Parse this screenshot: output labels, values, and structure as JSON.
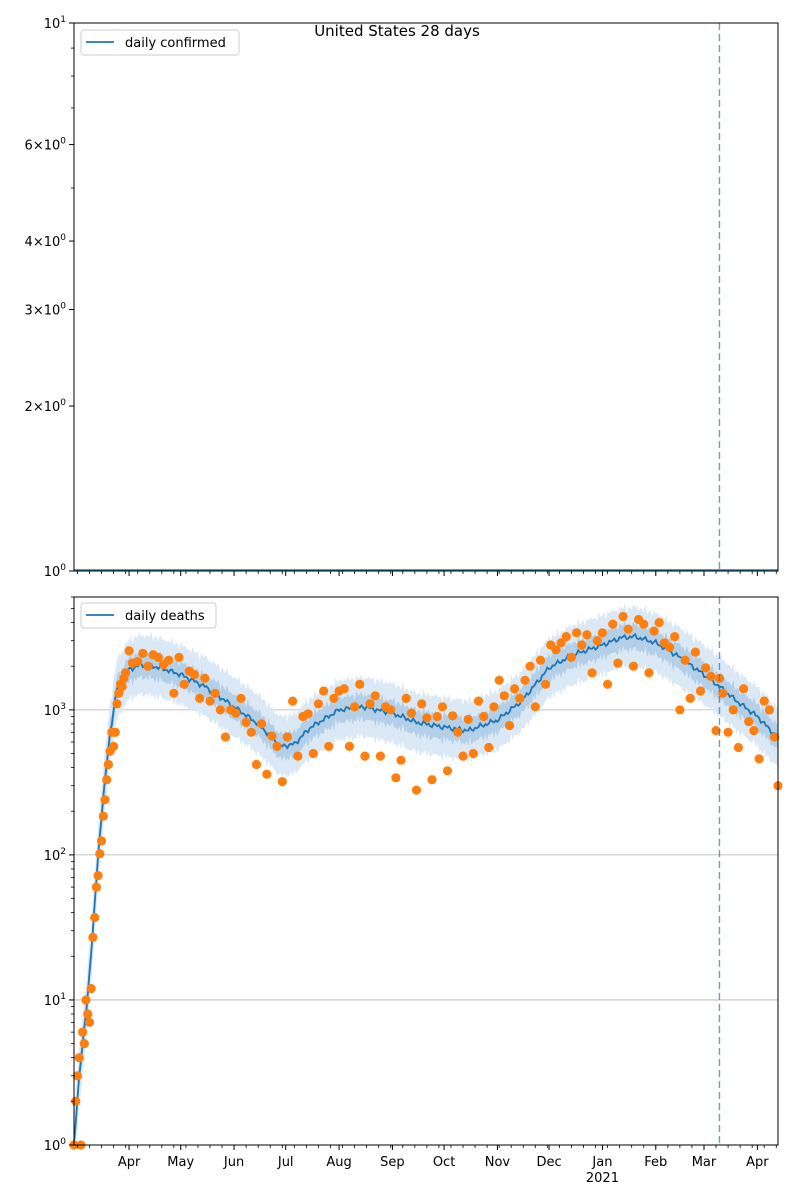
{
  "figure": {
    "title": "United States 28 days"
  },
  "colors": {
    "line": "#1f77b4",
    "band_outer": "#dbe9f6",
    "band_inner": "#b4cfe8",
    "scatter": "#ff7f0e",
    "grid": "#b0b0b0",
    "vline": "#1f77b4"
  },
  "chart_data": [
    {
      "type": "line",
      "legend": {
        "label": "daily confirmed",
        "placement": "top-left"
      },
      "yscale": "log",
      "ylim": [
        1,
        10
      ],
      "ytick_labels": [
        {
          "value": 1,
          "base": "10",
          "exp": "0",
          "coef": ""
        },
        {
          "value": 2,
          "base": "10",
          "exp": "0",
          "coef": "2"
        },
        {
          "value": 3,
          "base": "10",
          "exp": "0",
          "coef": "3"
        },
        {
          "value": 4,
          "base": "10",
          "exp": "0",
          "coef": "4"
        },
        {
          "value": 6,
          "base": "10",
          "exp": "0",
          "coef": "6"
        },
        {
          "value": 10,
          "base": "10",
          "exp": "1",
          "coef": ""
        }
      ],
      "minor_ticks": [
        5,
        7,
        8,
        9
      ],
      "grid": false,
      "series": [
        {
          "values_description_free": true,
          "x": [
            "2020-02-29",
            "2021-04-13"
          ],
          "y": [
            1,
            1
          ]
        }
      ],
      "vline_date": "2021-03-10"
    },
    {
      "type": "line+scatter",
      "legend": {
        "label": "daily deaths",
        "placement": "top-left"
      },
      "yscale": "log",
      "ylim": [
        1,
        6000
      ],
      "ytick_labels": [
        {
          "value": 1,
          "base": "10",
          "exp": "0"
        },
        {
          "value": 10,
          "base": "10",
          "exp": "1"
        },
        {
          "value": 100,
          "base": "10",
          "exp": "2"
        },
        {
          "value": 1000,
          "base": "10",
          "exp": "3"
        }
      ],
      "grid": true,
      "xlim": [
        "2020-02-29",
        "2021-04-13"
      ],
      "x_ticks": [
        {
          "date": "2020-04-01",
          "label": "Apr"
        },
        {
          "date": "2020-05-01",
          "label": "May"
        },
        {
          "date": "2020-06-01",
          "label": "Jun"
        },
        {
          "date": "2020-07-01",
          "label": "Jul"
        },
        {
          "date": "2020-08-01",
          "label": "Aug"
        },
        {
          "date": "2020-09-01",
          "label": "Sep"
        },
        {
          "date": "2020-10-01",
          "label": "Oct"
        },
        {
          "date": "2020-11-01",
          "label": "Nov"
        },
        {
          "date": "2020-12-01",
          "label": "Dec"
        },
        {
          "date": "2021-01-01",
          "label": "Jan",
          "sublabel": "2021"
        },
        {
          "date": "2021-02-01",
          "label": "Feb"
        },
        {
          "date": "2021-03-01",
          "label": "Mar"
        },
        {
          "date": "2021-04-01",
          "label": "Apr"
        }
      ],
      "vline_date": "2021-03-10",
      "trend_keypoints": [
        [
          "2020-02-29",
          1
        ],
        [
          "2020-03-03",
          3
        ],
        [
          "2020-03-07",
          8
        ],
        [
          "2020-03-11",
          30
        ],
        [
          "2020-03-14",
          100
        ],
        [
          "2020-03-17",
          250
        ],
        [
          "2020-03-21",
          700
        ],
        [
          "2020-03-25",
          1400
        ],
        [
          "2020-04-01",
          1900
        ],
        [
          "2020-04-08",
          2050
        ],
        [
          "2020-04-15",
          2000
        ],
        [
          "2020-04-22",
          1900
        ],
        [
          "2020-05-01",
          1750
        ],
        [
          "2020-05-15",
          1450
        ],
        [
          "2020-06-01",
          1050
        ],
        [
          "2020-06-15",
          800
        ],
        [
          "2020-06-28",
          560
        ],
        [
          "2020-07-06",
          580
        ],
        [
          "2020-07-15",
          750
        ],
        [
          "2020-08-01",
          1000
        ],
        [
          "2020-08-15",
          1050
        ],
        [
          "2020-09-01",
          950
        ],
        [
          "2020-09-15",
          820
        ],
        [
          "2020-10-01",
          760
        ],
        [
          "2020-10-15",
          720
        ],
        [
          "2020-11-01",
          850
        ],
        [
          "2020-11-15",
          1150
        ],
        [
          "2020-12-01",
          1950
        ],
        [
          "2020-12-15",
          2400
        ],
        [
          "2021-01-01",
          2800
        ],
        [
          "2021-01-12",
          3150
        ],
        [
          "2021-01-20",
          3200
        ],
        [
          "2021-02-01",
          2900
        ],
        [
          "2021-02-15",
          2300
        ],
        [
          "2021-03-01",
          1750
        ],
        [
          "2021-03-10",
          1450
        ],
        [
          "2021-03-20",
          1150
        ],
        [
          "2021-04-01",
          900
        ],
        [
          "2021-04-13",
          640
        ]
      ],
      "observed_daily_deaths": [
        [
          "2020-02-29",
          1
        ],
        [
          "2020-03-01",
          2
        ],
        [
          "2020-03-02",
          3
        ],
        [
          "2020-03-03",
          4
        ],
        [
          "2020-03-04",
          1
        ],
        [
          "2020-03-05",
          6
        ],
        [
          "2020-03-06",
          5
        ],
        [
          "2020-03-07",
          10
        ],
        [
          "2020-03-08",
          8
        ],
        [
          "2020-03-09",
          7
        ],
        [
          "2020-03-10",
          12
        ],
        [
          "2020-03-11",
          27
        ],
        [
          "2020-03-12",
          37
        ],
        [
          "2020-03-13",
          60
        ],
        [
          "2020-03-14",
          72
        ],
        [
          "2020-03-15",
          102
        ],
        [
          "2020-03-16",
          125
        ],
        [
          "2020-03-17",
          185
        ],
        [
          "2020-03-18",
          240
        ],
        [
          "2020-03-19",
          330
        ],
        [
          "2020-03-20",
          420
        ],
        [
          "2020-03-21",
          520
        ],
        [
          "2020-03-22",
          700
        ],
        [
          "2020-03-23",
          560
        ],
        [
          "2020-03-24",
          700
        ],
        [
          "2020-03-25",
          1100
        ],
        [
          "2020-03-26",
          1300
        ],
        [
          "2020-03-27",
          1500
        ],
        [
          "2020-03-28",
          1450
        ],
        [
          "2020-03-29",
          1650
        ],
        [
          "2020-03-30",
          1800
        ],
        [
          "2020-04-01",
          2550
        ],
        [
          "2020-04-03",
          2100
        ],
        [
          "2020-04-06",
          2150
        ],
        [
          "2020-04-09",
          2450
        ],
        [
          "2020-04-12",
          2000
        ],
        [
          "2020-04-15",
          2400
        ],
        [
          "2020-04-18",
          2300
        ],
        [
          "2020-04-21",
          2050
        ],
        [
          "2020-04-24",
          2200
        ],
        [
          "2020-04-27",
          1300
        ],
        [
          "2020-04-30",
          2300
        ],
        [
          "2020-05-03",
          1500
        ],
        [
          "2020-05-06",
          1850
        ],
        [
          "2020-05-09",
          1750
        ],
        [
          "2020-05-12",
          1200
        ],
        [
          "2020-05-15",
          1650
        ],
        [
          "2020-05-18",
          1150
        ],
        [
          "2020-05-21",
          1300
        ],
        [
          "2020-05-24",
          1000
        ],
        [
          "2020-05-27",
          650
        ],
        [
          "2020-05-30",
          1000
        ],
        [
          "2020-06-02",
          950
        ],
        [
          "2020-06-05",
          1200
        ],
        [
          "2020-06-08",
          820
        ],
        [
          "2020-06-11",
          700
        ],
        [
          "2020-06-14",
          420
        ],
        [
          "2020-06-17",
          800
        ],
        [
          "2020-06-20",
          360
        ],
        [
          "2020-06-23",
          660
        ],
        [
          "2020-06-26",
          560
        ],
        [
          "2020-06-29",
          320
        ],
        [
          "2020-07-02",
          650
        ],
        [
          "2020-07-05",
          1150
        ],
        [
          "2020-07-08",
          480
        ],
        [
          "2020-07-11",
          900
        ],
        [
          "2020-07-14",
          940
        ],
        [
          "2020-07-17",
          500
        ],
        [
          "2020-07-20",
          1100
        ],
        [
          "2020-07-23",
          1350
        ],
        [
          "2020-07-26",
          560
        ],
        [
          "2020-07-29",
          1200
        ],
        [
          "2020-08-01",
          1350
        ],
        [
          "2020-08-04",
          1400
        ],
        [
          "2020-08-07",
          560
        ],
        [
          "2020-08-10",
          1050
        ],
        [
          "2020-08-13",
          1500
        ],
        [
          "2020-08-16",
          480
        ],
        [
          "2020-08-19",
          1100
        ],
        [
          "2020-08-22",
          1250
        ],
        [
          "2020-08-25",
          480
        ],
        [
          "2020-08-28",
          1050
        ],
        [
          "2020-08-31",
          1000
        ],
        [
          "2020-09-03",
          340
        ],
        [
          "2020-09-06",
          450
        ],
        [
          "2020-09-09",
          1200
        ],
        [
          "2020-09-12",
          950
        ],
        [
          "2020-09-15",
          280
        ],
        [
          "2020-09-18",
          1100
        ],
        [
          "2020-09-21",
          880
        ],
        [
          "2020-09-24",
          330
        ],
        [
          "2020-09-27",
          900
        ],
        [
          "2020-09-30",
          1050
        ],
        [
          "2020-10-03",
          380
        ],
        [
          "2020-10-06",
          910
        ],
        [
          "2020-10-09",
          700
        ],
        [
          "2020-10-12",
          480
        ],
        [
          "2020-10-15",
          860
        ],
        [
          "2020-10-18",
          500
        ],
        [
          "2020-10-21",
          1150
        ],
        [
          "2020-10-24",
          900
        ],
        [
          "2020-10-27",
          550
        ],
        [
          "2020-10-30",
          1050
        ],
        [
          "2020-11-02",
          1600
        ],
        [
          "2020-11-05",
          1250
        ],
        [
          "2020-11-08",
          780
        ],
        [
          "2020-11-11",
          1400
        ],
        [
          "2020-11-14",
          1200
        ],
        [
          "2020-11-17",
          1600
        ],
        [
          "2020-11-20",
          2000
        ],
        [
          "2020-11-23",
          1050
        ],
        [
          "2020-11-26",
          2200
        ],
        [
          "2020-11-29",
          1500
        ],
        [
          "2020-12-02",
          2800
        ],
        [
          "2020-12-05",
          2600
        ],
        [
          "2020-12-08",
          2900
        ],
        [
          "2020-12-11",
          3200
        ],
        [
          "2020-12-14",
          2300
        ],
        [
          "2020-12-17",
          3400
        ],
        [
          "2020-12-20",
          2800
        ],
        [
          "2020-12-23",
          3300
        ],
        [
          "2020-12-26",
          1800
        ],
        [
          "2020-12-29",
          3000
        ],
        [
          "2021-01-01",
          3400
        ],
        [
          "2021-01-04",
          1500
        ],
        [
          "2021-01-07",
          3900
        ],
        [
          "2021-01-10",
          2100
        ],
        [
          "2021-01-13",
          4400
        ],
        [
          "2021-01-16",
          3600
        ],
        [
          "2021-01-19",
          2000
        ],
        [
          "2021-01-22",
          4200
        ],
        [
          "2021-01-25",
          3900
        ],
        [
          "2021-01-28",
          1800
        ],
        [
          "2021-01-31",
          3500
        ],
        [
          "2021-02-03",
          4000
        ],
        [
          "2021-02-06",
          2900
        ],
        [
          "2021-02-09",
          2700
        ],
        [
          "2021-02-12",
          3200
        ],
        [
          "2021-02-15",
          1000
        ],
        [
          "2021-02-18",
          2200
        ],
        [
          "2021-02-21",
          1200
        ],
        [
          "2021-02-24",
          2500
        ],
        [
          "2021-02-27",
          1350
        ],
        [
          "2021-03-02",
          1950
        ],
        [
          "2021-03-05",
          1700
        ],
        [
          "2021-03-08",
          720
        ],
        [
          "2021-03-10",
          1650
        ],
        [
          "2021-03-12",
          1300
        ],
        [
          "2021-03-15",
          700
        ],
        [
          "2021-03-18",
          1000
        ],
        [
          "2021-03-21",
          550
        ],
        [
          "2021-03-24",
          1400
        ],
        [
          "2021-03-27",
          830
        ],
        [
          "2021-03-30",
          720
        ],
        [
          "2021-04-02",
          460
        ],
        [
          "2021-04-05",
          1150
        ],
        [
          "2021-04-08",
          1000
        ],
        [
          "2021-04-11",
          650
        ],
        [
          "2021-04-13",
          300
        ]
      ]
    }
  ]
}
